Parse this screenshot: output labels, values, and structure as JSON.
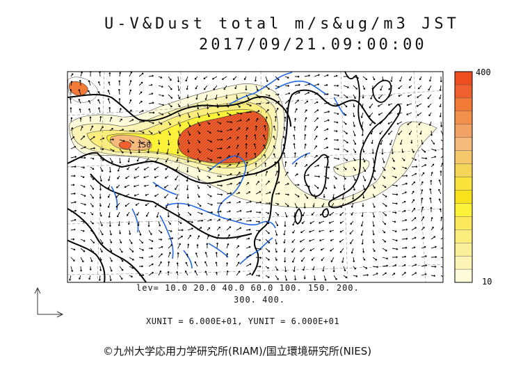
{
  "header": {
    "title": "U-V&Dust total m/s&ug/m3 JST",
    "datetime": "2017/09/21.09:00:00"
  },
  "map": {
    "contour_label": "150",
    "colors": {
      "ocean": "#ffffff",
      "land_border": "#000000",
      "river": "#1e64e6",
      "grid": "#888888",
      "vector": "#000000"
    }
  },
  "colorbar": {
    "max_label": "400",
    "min_label": "10",
    "colors": [
      "#fdfbd9",
      "#fbf4b4",
      "#faf09b",
      "#fbee7d",
      "#fbe85c",
      "#fcf23a",
      "#f9e21c",
      "#fae33c",
      "#f5d558",
      "#f6c86b",
      "#f6bb7c",
      "#f3a266",
      "#f2904b",
      "#f27a37",
      "#f0602e",
      "#ee4e1f"
    ]
  },
  "levels": {
    "line1": "lev= 10.0 20.0 40.0 60.0 100. 150. 200.",
    "line2": "300. 400."
  },
  "units": {
    "text": "XUNIT = 6.000E+01, YUNIT = 6.000E+01"
  },
  "credit": "©九州大学応用力学研究所(RIAM)/国立環境研究所(NIES)"
}
